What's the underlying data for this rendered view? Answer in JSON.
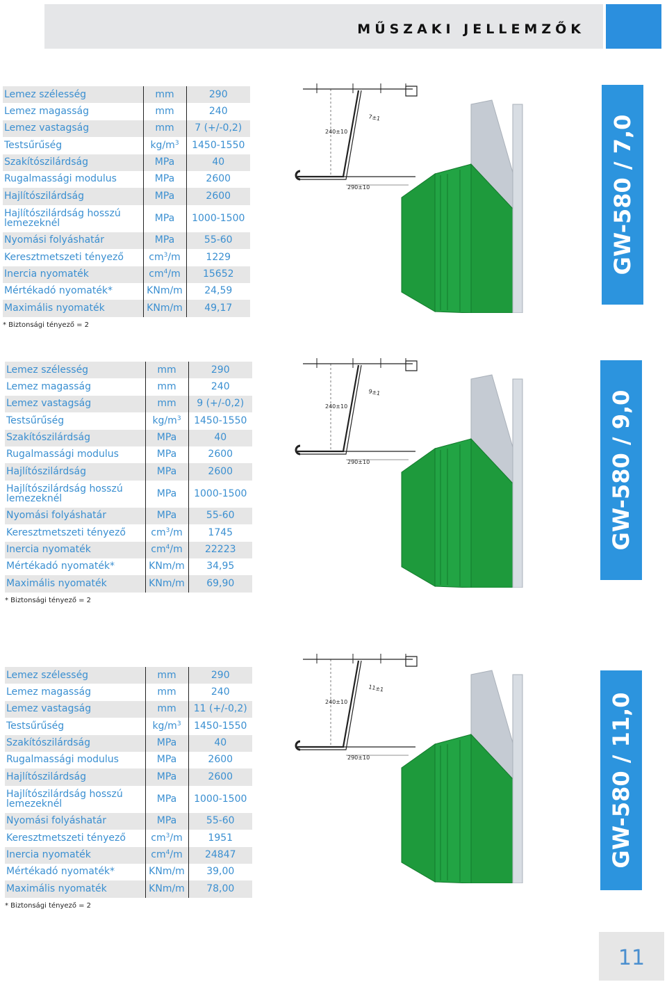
{
  "header": {
    "title": "MŰSZAKI JELLEMZŐK"
  },
  "note": "* Biztonsági tényező = 2",
  "page_number": "11",
  "dimensions": {
    "height": "240±10",
    "width": "290±10"
  },
  "products": [
    {
      "name": "GW-580 / 7,0",
      "thickness_label": "7±1",
      "rows": [
        {
          "label": "Lemez szélesség",
          "unit": "mm",
          "value": "290"
        },
        {
          "label": "Lemez magasság",
          "unit": "mm",
          "value": "240"
        },
        {
          "label": "Lemez vastagság",
          "unit": "mm",
          "value": "7 (+/-0,2)"
        },
        {
          "label": "Testsűrűség",
          "unit": "kg/m",
          "unit_sup": "3",
          "value": "1450-1550"
        },
        {
          "label": "Szakítószilárdság",
          "unit": "MPa",
          "value": "40"
        },
        {
          "label": "Rugalmassági modulus",
          "unit": "MPa",
          "value": "2600"
        },
        {
          "label": "Hajlítószilárdság",
          "unit": "MPa",
          "value": "2600"
        },
        {
          "label": "Hajlítószilárdság hosszú lemezeknél",
          "unit": "MPa",
          "value": "1000-1500"
        },
        {
          "label": "Nyomási folyáshatár",
          "unit": "MPa",
          "value": "55-60"
        },
        {
          "label": "Keresztmetszeti tényező",
          "unit": "cm",
          "unit_sup": "3",
          "unit_suffix": "/m",
          "value": "1229"
        },
        {
          "label": "Inercia nyomaték",
          "unit": "cm",
          "unit_sup": "4",
          "unit_suffix": "/m",
          "value": "15652"
        },
        {
          "label": "Mértékadó nyomaték*",
          "unit": "KNm/m",
          "value": "24,59"
        },
        {
          "label": "Maximális nyomaték",
          "unit": "KNm/m",
          "value": "49,17"
        }
      ]
    },
    {
      "name": "GW-580 / 9,0",
      "thickness_label": "9±1",
      "rows": [
        {
          "label": "Lemez szélesség",
          "unit": "mm",
          "value": "290"
        },
        {
          "label": "Lemez magasság",
          "unit": "mm",
          "value": "240"
        },
        {
          "label": "Lemez vastagság",
          "unit": "mm",
          "value": "9 (+/-0,2)"
        },
        {
          "label": "Testsűrűség",
          "unit": "kg/m",
          "unit_sup": "3",
          "value": "1450-1550"
        },
        {
          "label": "Szakítószilárdság",
          "unit": "MPa",
          "value": "40"
        },
        {
          "label": "Rugalmassági modulus",
          "unit": "MPa",
          "value": "2600"
        },
        {
          "label": "Hajlítószilárdság",
          "unit": "MPa",
          "value": "2600"
        },
        {
          "label": "Hajlítószilárdság hosszú lemezeknél",
          "unit": "MPa",
          "value": "1000-1500"
        },
        {
          "label": "Nyomási folyáshatár",
          "unit": "MPa",
          "value": "55-60"
        },
        {
          "label": "Keresztmetszeti tényező",
          "unit": "cm",
          "unit_sup": "3",
          "unit_suffix": "/m",
          "value": "1745"
        },
        {
          "label": "Inercia nyomaték",
          "unit": "cm",
          "unit_sup": "4",
          "unit_suffix": "/m",
          "value": "22223"
        },
        {
          "label": "Mértékadó nyomaték*",
          "unit": "KNm/m",
          "value": "34,95"
        },
        {
          "label": "Maximális nyomaték",
          "unit": "KNm/m",
          "value": "69,90"
        }
      ]
    },
    {
      "name": "GW-580 / 11,0",
      "thickness_label": "11±1",
      "rows": [
        {
          "label": "Lemez szélesség",
          "unit": "mm",
          "value": "290"
        },
        {
          "label": "Lemez magasság",
          "unit": "mm",
          "value": "240"
        },
        {
          "label": "Lemez vastagság",
          "unit": "mm",
          "value": "11 (+/-0,2)"
        },
        {
          "label": "Testsűrűség",
          "unit": "kg/m",
          "unit_sup": "3",
          "value": "1450-1550"
        },
        {
          "label": "Szakítószilárdság",
          "unit": "MPa",
          "value": "40"
        },
        {
          "label": "Rugalmassági modulus",
          "unit": "MPa",
          "value": "2600"
        },
        {
          "label": "Hajlítószilárdság",
          "unit": "MPa",
          "value": "2600"
        },
        {
          "label": "Hajlítószilárdság hosszú lemezeknél",
          "unit": "MPa",
          "value": "1000-1500"
        },
        {
          "label": "Nyomási folyáshatár",
          "unit": "MPa",
          "value": "55-60"
        },
        {
          "label": "Keresztmetszeti tényező",
          "unit": "cm",
          "unit_sup": "3",
          "unit_suffix": "/m",
          "value": "1951"
        },
        {
          "label": "Inercia nyomaték",
          "unit": "cm",
          "unit_sup": "4",
          "unit_suffix": "/m",
          "value": "24847"
        },
        {
          "label": "Mértékadó nyomaték*",
          "unit": "KNm/m",
          "value": "39,00"
        },
        {
          "label": "Maximális nyomaték",
          "unit": "KNm/m",
          "value": "78,00"
        }
      ]
    }
  ],
  "colors": {
    "accent_blue": "#2c94de",
    "text_blue": "#3a8fd1",
    "profile_green": "#1e9a3c",
    "profile_gray": "#c5cbd3"
  }
}
